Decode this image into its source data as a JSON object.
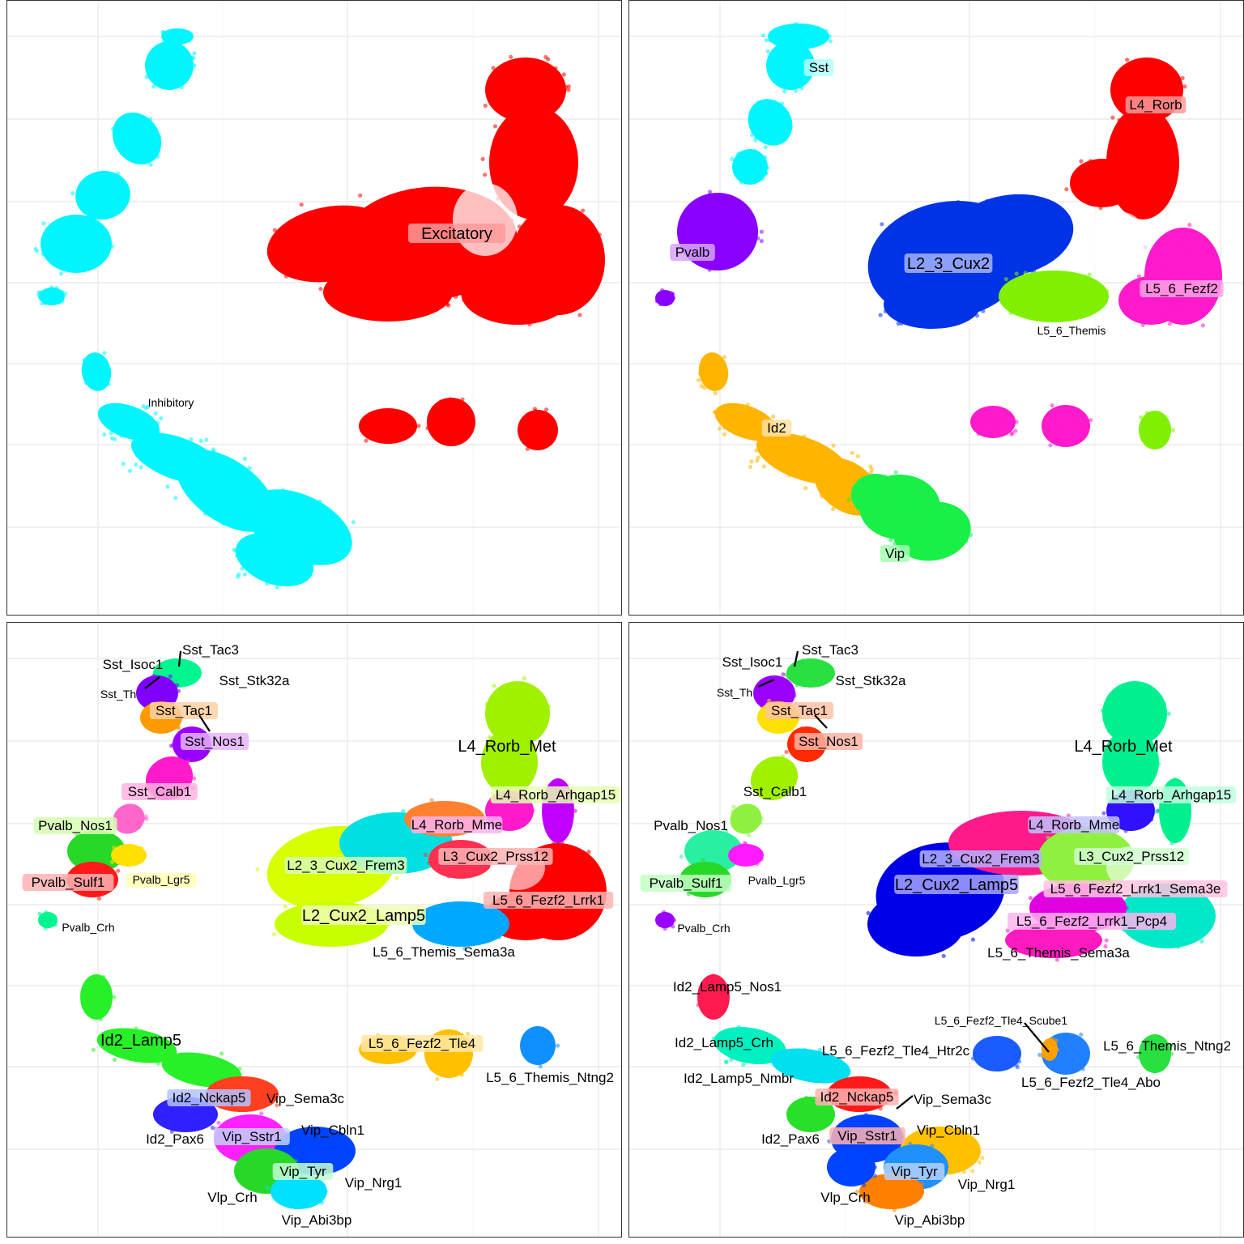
{
  "chart_data": [
    {
      "type": "scatter",
      "grouping": "class",
      "grid": "on",
      "legend": "none",
      "labels": [
        {
          "text": "Excitatory",
          "size": "large",
          "box": true,
          "box_color": "#ff9999"
        },
        {
          "text": "Inhibitory",
          "size": "small",
          "box": false
        }
      ]
    },
    {
      "type": "scatter",
      "grouping": "subclass",
      "grid": "on",
      "legend": "none",
      "labels": [
        {
          "text": "Sst",
          "size": "medium",
          "box": true,
          "box_color": "#b3ffff"
        },
        {
          "text": "L4_Rorb",
          "size": "medium",
          "box": true,
          "box_color": "#ff9999"
        },
        {
          "text": "Pvalb",
          "size": "medium",
          "box": true,
          "box_color": "#d6a3ff"
        },
        {
          "text": "L2_3_Cux2",
          "size": "large",
          "box": true,
          "box_color": "#a3b3ff"
        },
        {
          "text": "L5_6_Fezf2",
          "size": "medium",
          "box": true,
          "box_color": "#ffa3e6"
        },
        {
          "text": "L5_6_Themis",
          "size": "small",
          "box": false
        },
        {
          "text": "Id2",
          "size": "medium",
          "box": true,
          "box_color": "#ffe0a3"
        },
        {
          "text": "Vip",
          "size": "medium",
          "box": true,
          "box_color": "#a3ffb0"
        }
      ]
    },
    {
      "type": "scatter",
      "grouping": "cluster",
      "grid": "on",
      "legend": "none",
      "labels": [
        {
          "text": "Sst_Tac3",
          "size": "medium"
        },
        {
          "text": "Sst_Isoc1",
          "size": "medium"
        },
        {
          "text": "Sst_Stk32a",
          "size": "medium"
        },
        {
          "text": "Sst_Th",
          "size": "small"
        },
        {
          "text": "Sst_Tac1",
          "size": "medium",
          "box": true,
          "box_color": "#ffd1a3"
        },
        {
          "text": "Sst_Nos1",
          "size": "medium",
          "box": true,
          "box_color": "#e6b3ff"
        },
        {
          "text": "Sst_Calb1",
          "size": "medium",
          "box": true,
          "box_color": "#ffb3e0"
        },
        {
          "text": "L4_Rorb_Met",
          "size": "large"
        },
        {
          "text": "L4_Rorb_Arhgap15",
          "size": "medium",
          "box": true,
          "box_color": "#e6ffb3"
        },
        {
          "text": "Pvalb_Nos1",
          "size": "medium",
          "box": true,
          "box_color": "#d6ffb3"
        },
        {
          "text": "L4_Rorb_Mme",
          "size": "medium",
          "box": true,
          "box_color": "#ffb3f0"
        },
        {
          "text": "L3_Cux2_Prss12",
          "size": "medium",
          "box": true,
          "box_color": "#ffb3b3"
        },
        {
          "text": "L2_3_Cux2_Frem3",
          "size": "medium",
          "box": true,
          "box_color": "#d6ffb3"
        },
        {
          "text": "Pvalb_Sulf1",
          "size": "medium",
          "box": true,
          "box_color": "#ffb3b3"
        },
        {
          "text": "Pvalb_Lgr5",
          "size": "small",
          "box": true,
          "box_color": "#ffffb3"
        },
        {
          "text": "L5_6_Fezf2_Lrrk1",
          "size": "medium",
          "box": true,
          "box_color": "#ffb3b3"
        },
        {
          "text": "L2_Cux2_Lamp5",
          "size": "large",
          "box": true,
          "box_color": "#eeffb3"
        },
        {
          "text": "Pvalb_Crh",
          "size": "small"
        },
        {
          "text": "L5_6_Themis_Sema3a",
          "size": "medium"
        },
        {
          "text": "Id2_Lamp5",
          "size": "large"
        },
        {
          "text": "L5_6_Fezf2_Tle4",
          "size": "medium",
          "box": true,
          "box_color": "#ffe8a3"
        },
        {
          "text": "L5_6_Themis_Ntng2",
          "size": "medium"
        },
        {
          "text": "Id2_Nckap5",
          "size": "medium",
          "box": true,
          "box_color": "#b3c2ff"
        },
        {
          "text": "Vip_Sema3c",
          "size": "medium"
        },
        {
          "text": "Vip_Sstr1",
          "size": "medium",
          "box": true,
          "box_color": "#c2d1ff"
        },
        {
          "text": "Vip_Cbln1",
          "size": "medium"
        },
        {
          "text": "Id2_Pax6",
          "size": "medium"
        },
        {
          "text": "Vip_Tyr",
          "size": "medium",
          "box": true,
          "box_color": "#c2ffd1"
        },
        {
          "text": "Vip_Nrg1",
          "size": "medium"
        },
        {
          "text": "Vlp_Crh",
          "size": "medium"
        },
        {
          "text": "Vip_Abi3bp",
          "size": "medium"
        }
      ]
    },
    {
      "type": "scatter",
      "grouping": "cluster",
      "grid": "on",
      "legend": "none",
      "labels": [
        {
          "text": "Sst_Tac3",
          "size": "medium"
        },
        {
          "text": "Sst_Isoc1",
          "size": "medium"
        },
        {
          "text": "Sst_Stk32a",
          "size": "medium"
        },
        {
          "text": "Sst_Th",
          "size": "small"
        },
        {
          "text": "Sst_Tac1",
          "size": "medium",
          "box": true,
          "box_color": "#ffc2a3"
        },
        {
          "text": "Sst_Nos1",
          "size": "medium",
          "box": true,
          "box_color": "#ffb3a3"
        },
        {
          "text": "Sst_Calb1",
          "size": "medium"
        },
        {
          "text": "L4_Rorb_Met",
          "size": "large"
        },
        {
          "text": "L4_Rorb_Arhgap15",
          "size": "medium",
          "box": true,
          "box_color": "#c2ffe0"
        },
        {
          "text": "Pvalb_Nos1",
          "size": "medium"
        },
        {
          "text": "L4_Rorb_Mme",
          "size": "medium",
          "box": true,
          "box_color": "#c2c2ff"
        },
        {
          "text": "L2_3_Cux2_Frem3",
          "size": "medium",
          "box": true,
          "box_color": "#b3b3ff"
        },
        {
          "text": "L3_Cux2_Prss12",
          "size": "medium",
          "box": true,
          "box_color": "#d1ffd1"
        },
        {
          "text": "L2_Cux2_Lamp5",
          "size": "large",
          "box": true,
          "box_color": "#a3a3ff"
        },
        {
          "text": "Pvalb_Sulf1",
          "size": "medium",
          "box": true,
          "box_color": "#c2ffc2"
        },
        {
          "text": "Pvalb_Lgr5",
          "size": "small"
        },
        {
          "text": "L5_6_Fezf2_Lrrk1_Sema3e",
          "size": "medium",
          "box": true,
          "box_color": "#ffc2e0"
        },
        {
          "text": "L5_6_Fezf2_Lrrk1_Pcp4",
          "size": "medium",
          "box": true,
          "box_color": "#ffb3f0"
        },
        {
          "text": "Pvalb_Crh",
          "size": "small"
        },
        {
          "text": "L5_6_Themis_Sema3a",
          "size": "medium"
        },
        {
          "text": "Id2_Lamp5_Nos1",
          "size": "medium"
        },
        {
          "text": "L5_6_Fezf2_Tle4_Scube1",
          "size": "small"
        },
        {
          "text": "Id2_Lamp5_Crh",
          "size": "medium"
        },
        {
          "text": "L5_6_Fezf2_Tle4_Htr2c",
          "size": "medium"
        },
        {
          "text": "L5_6_Themis_Ntng2",
          "size": "medium"
        },
        {
          "text": "L5_6_Fezf2_Tle4_Abo",
          "size": "medium"
        },
        {
          "text": "Id2_Lamp5_Nmbr",
          "size": "medium"
        },
        {
          "text": "Id2_Nckap5",
          "size": "medium",
          "box": true,
          "box_color": "#ffb3b3"
        },
        {
          "text": "Vip_Sema3c",
          "size": "medium"
        },
        {
          "text": "Vip_Sstr1",
          "size": "medium",
          "box": true,
          "box_color": "#ffb3b3"
        },
        {
          "text": "Vip_Cbln1",
          "size": "medium"
        },
        {
          "text": "Id2_Pax6",
          "size": "medium"
        },
        {
          "text": "Vip_Tyr",
          "size": "medium",
          "box": true,
          "box_color": "#b3d1ff"
        },
        {
          "text": "Vip_Nrg1",
          "size": "medium"
        },
        {
          "text": "Vlp_Crh",
          "size": "medium"
        },
        {
          "text": "Vip_Abi3bp",
          "size": "medium"
        }
      ]
    }
  ]
}
